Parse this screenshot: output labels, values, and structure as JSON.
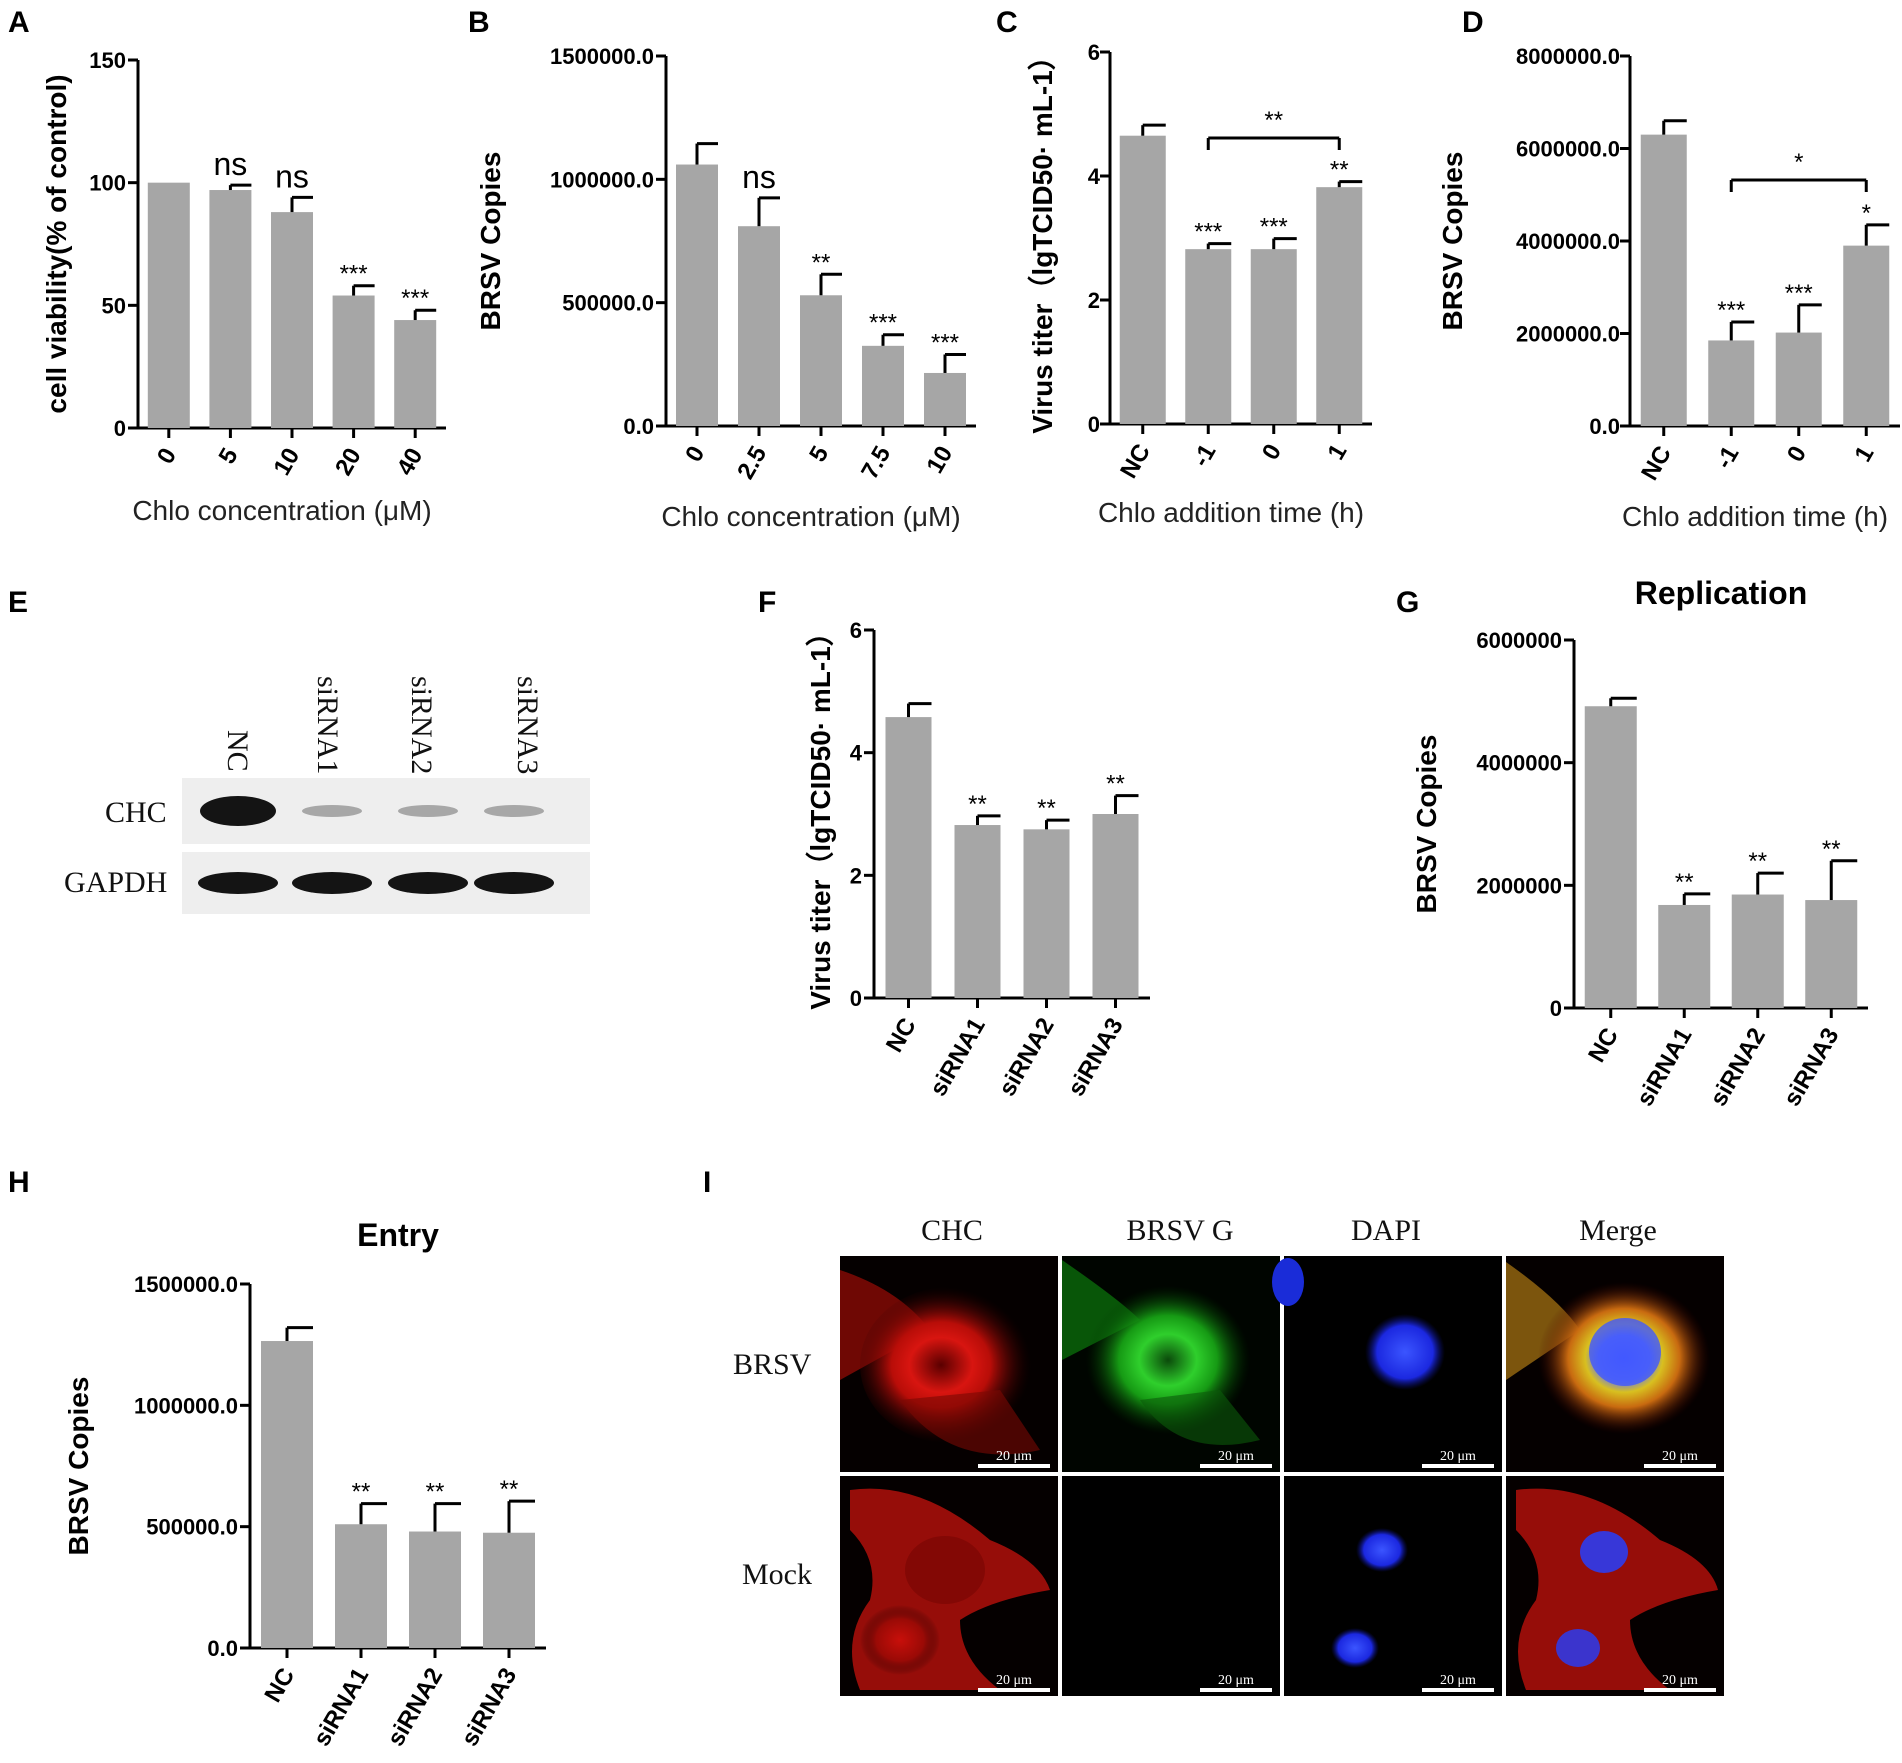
{
  "panel_labels": [
    "A",
    "B",
    "C",
    "D",
    "E",
    "F",
    "G",
    "H",
    "I"
  ],
  "chart_data": [
    {
      "id": "A",
      "type": "bar",
      "categories": [
        "0",
        "5",
        "10",
        "20",
        "40"
      ],
      "values": [
        100,
        97,
        88,
        54,
        44
      ],
      "errors": [
        0,
        2,
        6,
        4,
        4
      ],
      "significance": [
        "",
        "ns",
        "ns",
        "***",
        "***"
      ],
      "xlabel": "Chlo concentration (μM)",
      "ylabel": "cell viability(% of control)",
      "yticks": [
        "0",
        "50",
        "100",
        "150"
      ],
      "ylim": [
        0,
        150
      ],
      "title": ""
    },
    {
      "id": "B",
      "type": "bar",
      "categories": [
        "0",
        "2.5",
        "5",
        "7.5",
        "10"
      ],
      "values": [
        1060000,
        810000,
        530000,
        325000,
        215000
      ],
      "errors": [
        85000,
        115000,
        85000,
        45000,
        75000
      ],
      "significance": [
        "",
        "ns",
        "**",
        "***",
        "***"
      ],
      "xlabel": "Chlo concentration (μM)",
      "ylabel": "BRSV Copies",
      "yticks": [
        "0.0",
        "500000.0",
        "1000000.0",
        "1500000.0"
      ],
      "ylim": [
        0,
        1500000
      ],
      "title": ""
    },
    {
      "id": "C",
      "type": "bar",
      "categories": [
        "NC",
        "-1",
        "0",
        "1"
      ],
      "values": [
        4.65,
        2.82,
        2.82,
        3.82
      ],
      "errors": [
        0.17,
        0.09,
        0.17,
        0.09
      ],
      "significance": [
        "",
        "***",
        "***",
        "**"
      ],
      "bracket": {
        "from": 1,
        "to": 3,
        "label": "**"
      },
      "xlabel": "Chlo addition time (h)",
      "ylabel": "Virus titer（lgTCID50· mL-1）",
      "yticks": [
        "0",
        "2",
        "4",
        "6"
      ],
      "ylim": [
        0,
        6
      ],
      "title": ""
    },
    {
      "id": "D",
      "type": "bar",
      "categories": [
        "NC",
        "-1",
        "0",
        "1"
      ],
      "values": [
        6300000,
        1850000,
        2020000,
        3900000
      ],
      "errors": [
        300000,
        400000,
        600000,
        450000
      ],
      "significance": [
        "",
        "***",
        "***",
        "*"
      ],
      "bracket": {
        "from": 1,
        "to": 3,
        "label": "*"
      },
      "xlabel": "Chlo addition time (h)",
      "ylabel": "BRSV Copies",
      "yticks": [
        "0.0",
        "2000000.0",
        "4000000.0",
        "6000000.0",
        "8000000.0"
      ],
      "ylim": [
        0,
        8000000
      ],
      "title": ""
    },
    {
      "id": "F",
      "type": "bar",
      "categories": [
        "NC",
        "siRNA1",
        "siRNA2",
        "siRNA3"
      ],
      "values": [
        4.58,
        2.82,
        2.75,
        3.0
      ],
      "errors": [
        0.22,
        0.15,
        0.15,
        0.3
      ],
      "significance": [
        "",
        "**",
        "**",
        "**"
      ],
      "xlabel": "",
      "ylabel": "Virus titer（lgTCID50· mL-1）",
      "yticks": [
        "0",
        "2",
        "4",
        "6"
      ],
      "ylim": [
        0,
        6
      ],
      "title": ""
    },
    {
      "id": "G",
      "type": "bar",
      "categories": [
        "NC",
        "siRNA1",
        "siRNA2",
        "siRNA3"
      ],
      "values": [
        4920000,
        1680000,
        1850000,
        1760000
      ],
      "errors": [
        130000,
        180000,
        350000,
        640000
      ],
      "significance": [
        "",
        "**",
        "**",
        "**"
      ],
      "xlabel": "",
      "ylabel": "BRSV Copies",
      "yticks": [
        "0",
        "2000000",
        "4000000",
        "6000000"
      ],
      "ylim": [
        0,
        6000000
      ],
      "title": "Replication"
    },
    {
      "id": "H",
      "type": "bar",
      "categories": [
        "NC",
        "siRNA1",
        "siRNA2",
        "siRNA3"
      ],
      "values": [
        1265000,
        510000,
        480000,
        475000
      ],
      "errors": [
        55000,
        85000,
        115000,
        130000
      ],
      "significance": [
        "",
        "**",
        "**",
        "**"
      ],
      "xlabel": "",
      "ylabel": "BRSV Copies",
      "yticks": [
        "0.0",
        "500000.0",
        "1000000.0",
        "1500000.0"
      ],
      "ylim": [
        0,
        1500000
      ],
      "title": "Entry"
    }
  ],
  "western_blot": {
    "id": "E",
    "lanes": [
      "NC",
      "siRNA1",
      "siRNA2",
      "siRNA3"
    ],
    "rows": [
      "CHC",
      "GAPDH"
    ],
    "intensity": {
      "CHC": [
        1.0,
        0.3,
        0.3,
        0.3
      ],
      "GAPDH": [
        1.0,
        1.0,
        1.0,
        1.0
      ]
    }
  },
  "microscopy": {
    "id": "I",
    "columns": [
      "CHC",
      "BRSV G",
      "DAPI",
      "Merge"
    ],
    "rows": [
      "BRSV",
      "Mock"
    ],
    "scale_bar": "20 μm"
  },
  "colors": {
    "bar": "#a6a6a6",
    "axis": "#000000",
    "red_channel": "#e0150f",
    "green_channel": "#1fbf22",
    "blue_channel": "#1a2cff"
  }
}
